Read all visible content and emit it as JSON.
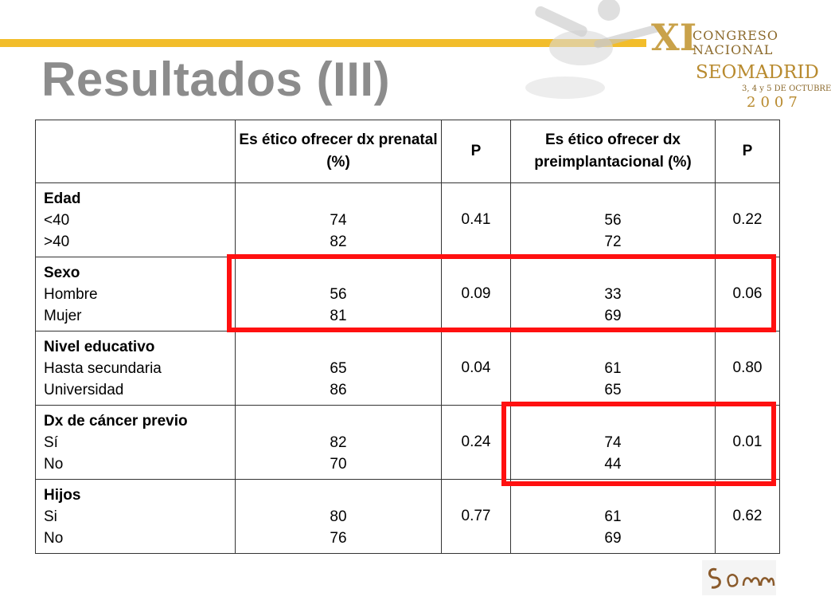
{
  "slide": {
    "title": "Resultados (III)"
  },
  "logo": {
    "roman": "XI",
    "line1": "CONGRESO",
    "line2": "NACIONAL",
    "seom": "SEOMADRID",
    "dates": "3, 4 y 5 DE OCTUBRE",
    "year": "2007"
  },
  "table": {
    "headers": [
      "",
      "Es ético ofrecer dx prenatal (%)",
      "P",
      "Es ético ofrecer dx preimplantacional (%)",
      "P"
    ],
    "rows": [
      {
        "group": "Edad",
        "labels": [
          "<40",
          ">40"
        ],
        "prenatal": [
          "74",
          "82"
        ],
        "p1": "0.41",
        "preimpl": [
          "56",
          "72"
        ],
        "p2": "0.22"
      },
      {
        "group": "Sexo",
        "labels": [
          "Hombre",
          "Mujer"
        ],
        "prenatal": [
          "56",
          "81"
        ],
        "p1": "0.09",
        "preimpl": [
          "33",
          "69"
        ],
        "p2": "0.06"
      },
      {
        "group": "Nivel educativo",
        "labels": [
          "Hasta secundaria",
          "Universidad"
        ],
        "prenatal": [
          "65",
          "86"
        ],
        "p1": "0.04",
        "preimpl": [
          "61",
          "65"
        ],
        "p2": "0.80"
      },
      {
        "group": "Dx de cáncer previo",
        "labels": [
          "Sí",
          "No"
        ],
        "prenatal": [
          "82",
          "70"
        ],
        "p1": "0.24",
        "preimpl": [
          "74",
          "44"
        ],
        "p2": "0.01"
      },
      {
        "group": "Hijos",
        "labels": [
          "Si",
          "No"
        ],
        "prenatal": [
          "80",
          "76"
        ],
        "p1": "0.77",
        "preimpl": [
          "61",
          "69"
        ],
        "p2": "0.62"
      }
    ]
  },
  "colors": {
    "accent_bar": "#f2bd2b",
    "title": "#8c8c8c",
    "highlight": "#ff1010"
  }
}
